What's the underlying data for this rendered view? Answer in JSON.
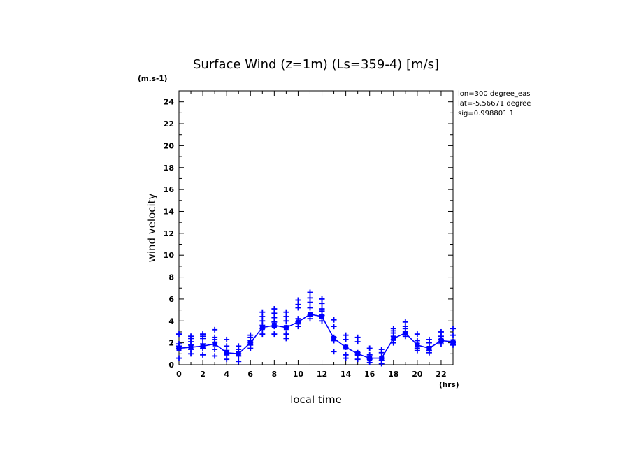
{
  "chart_data": {
    "type": "scatter",
    "title": "Surface Wind (z=1m) (Ls=359-4) [m/s]",
    "xlabel": "local time",
    "x_unit": "(hrs)",
    "ylabel": "wind velocity",
    "y_unit": "(m.s-1)",
    "xlim": [
      0,
      23
    ],
    "ylim": [
      0,
      25
    ],
    "x_ticks": [
      "0",
      "2",
      "4",
      "6",
      "8",
      "10",
      "12",
      "14",
      "16",
      "18",
      "20",
      "22"
    ],
    "y_ticks": [
      "0",
      "2",
      "4",
      "6",
      "8",
      "10",
      "12",
      "14",
      "16",
      "18",
      "20",
      "22",
      "24"
    ],
    "info": [
      "lon=300 degree_eas",
      "lat=-5.56671 degree",
      "sig=0.998801 1"
    ],
    "color": "#0000ff",
    "mean_line": {
      "x": [
        0,
        1,
        2,
        3,
        4,
        5,
        6,
        7,
        8,
        9,
        10,
        11,
        12,
        13,
        14,
        15,
        16,
        17,
        18,
        19,
        20,
        21,
        22,
        23
      ],
      "y": [
        1.5,
        1.6,
        1.7,
        1.9,
        1.1,
        1.0,
        2.0,
        3.4,
        3.6,
        3.4,
        3.9,
        4.6,
        4.4,
        2.4,
        1.6,
        1.0,
        0.6,
        0.6,
        2.4,
        2.9,
        1.8,
        1.5,
        2.2,
        2.1
      ]
    },
    "points": {
      "x": [
        0,
        0,
        0,
        0,
        0,
        1,
        1,
        1,
        1,
        1,
        1,
        2,
        2,
        2,
        2,
        2,
        2,
        3,
        3,
        3,
        3,
        3,
        3,
        4,
        4,
        4,
        4,
        4,
        5,
        5,
        5,
        5,
        5,
        6,
        6,
        6,
        6,
        6,
        6,
        7,
        7,
        7,
        7,
        7,
        7,
        8,
        8,
        8,
        8,
        8,
        8,
        9,
        9,
        9,
        9,
        9,
        9,
        10,
        10,
        10,
        10,
        10,
        10,
        11,
        11,
        11,
        11,
        11,
        11,
        12,
        12,
        12,
        12,
        12,
        12,
        13,
        13,
        13,
        13,
        13,
        14,
        14,
        14,
        14,
        14,
        15,
        15,
        15,
        15,
        15,
        16,
        16,
        16,
        16,
        16,
        17,
        17,
        17,
        17,
        17,
        18,
        18,
        18,
        18,
        18,
        18,
        19,
        19,
        19,
        19,
        19,
        19,
        20,
        20,
        20,
        20,
        20,
        21,
        21,
        21,
        21,
        21,
        22,
        22,
        22,
        22,
        22,
        23,
        23,
        23,
        23,
        23
      ],
      "y": [
        0.6,
        1.5,
        1.7,
        1.9,
        2.8,
        1.0,
        1.4,
        1.8,
        2.1,
        2.4,
        2.6,
        0.9,
        1.5,
        1.9,
        2.4,
        2.6,
        2.8,
        0.8,
        1.4,
        2.0,
        2.3,
        2.5,
        3.2,
        0.5,
        0.9,
        1.3,
        1.7,
        2.3,
        0.3,
        0.8,
        1.0,
        1.4,
        1.7,
        1.5,
        1.8,
        2.0,
        2.2,
        2.5,
        2.7,
        2.8,
        3.3,
        3.6,
        4.0,
        4.4,
        4.8,
        2.8,
        3.5,
        3.9,
        4.3,
        4.7,
        5.1,
        2.4,
        2.8,
        3.4,
        4.0,
        4.4,
        4.8,
        3.5,
        3.9,
        4.2,
        5.2,
        5.5,
        5.9,
        4.2,
        4.6,
        5.2,
        5.7,
        6.1,
        6.6,
        4.0,
        4.5,
        4.9,
        5.1,
        5.6,
        6.0,
        1.2,
        2.2,
        2.5,
        3.5,
        4.1,
        0.6,
        0.9,
        1.6,
        2.3,
        2.7,
        0.5,
        0.9,
        1.1,
        2.1,
        2.5,
        0.2,
        0.5,
        0.6,
        0.9,
        1.5,
        0.1,
        0.4,
        0.6,
        1.1,
        1.4,
        2.0,
        2.3,
        2.6,
        2.9,
        3.1,
        3.3,
        2.6,
        2.8,
        3.0,
        3.3,
        3.5,
        3.9,
        1.3,
        1.5,
        1.9,
        2.2,
        2.8,
        1.1,
        1.3,
        1.6,
        2.0,
        2.3,
        1.9,
        2.1,
        2.3,
        2.6,
        3.0,
        1.8,
        2.0,
        2.1,
        2.7,
        3.3
      ]
    }
  }
}
